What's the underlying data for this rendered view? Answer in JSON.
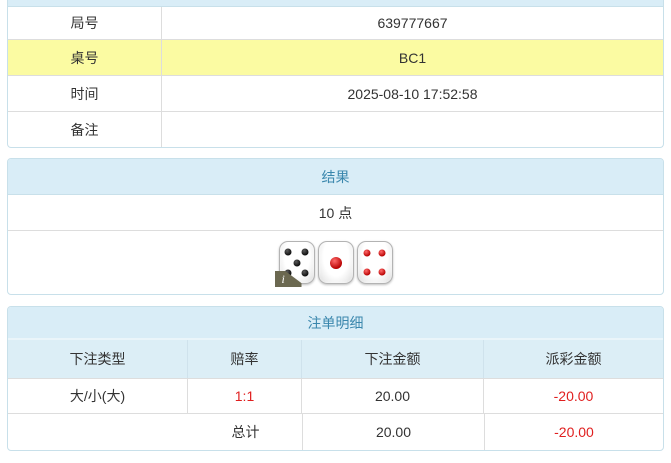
{
  "colors": {
    "heading_bg": "#d9edf7",
    "heading_text": "#3a87ad",
    "panel_border": "#c8e0ea",
    "highlight_yellow": "#fbfba2",
    "negative_red": "#e01f1f",
    "text_dark": "#333333"
  },
  "game_info": {
    "rows": [
      {
        "label": "局号",
        "value": "639777667"
      },
      {
        "label": "桌号",
        "value": "BC1"
      },
      {
        "label": "时间",
        "value": "2025-08-10 17:52:58"
      },
      {
        "label": "备注",
        "value": ""
      }
    ]
  },
  "result": {
    "title": "结果",
    "points": "10 点",
    "dice": [
      {
        "value": 5,
        "color": "black"
      },
      {
        "value": 1,
        "color": "red"
      },
      {
        "value": 4,
        "color": "red"
      }
    ],
    "info_icon": "i"
  },
  "bets": {
    "title": "注单明细",
    "columns": [
      "下注类型",
      "赔率",
      "下注金额",
      "派彩金额"
    ],
    "rows": [
      {
        "type": "大/小(大)",
        "odds": "1:1",
        "amount": "20.00",
        "payout": "-20.00"
      }
    ],
    "total": {
      "label": "总计",
      "amount": "20.00",
      "payout": "-20.00"
    }
  }
}
